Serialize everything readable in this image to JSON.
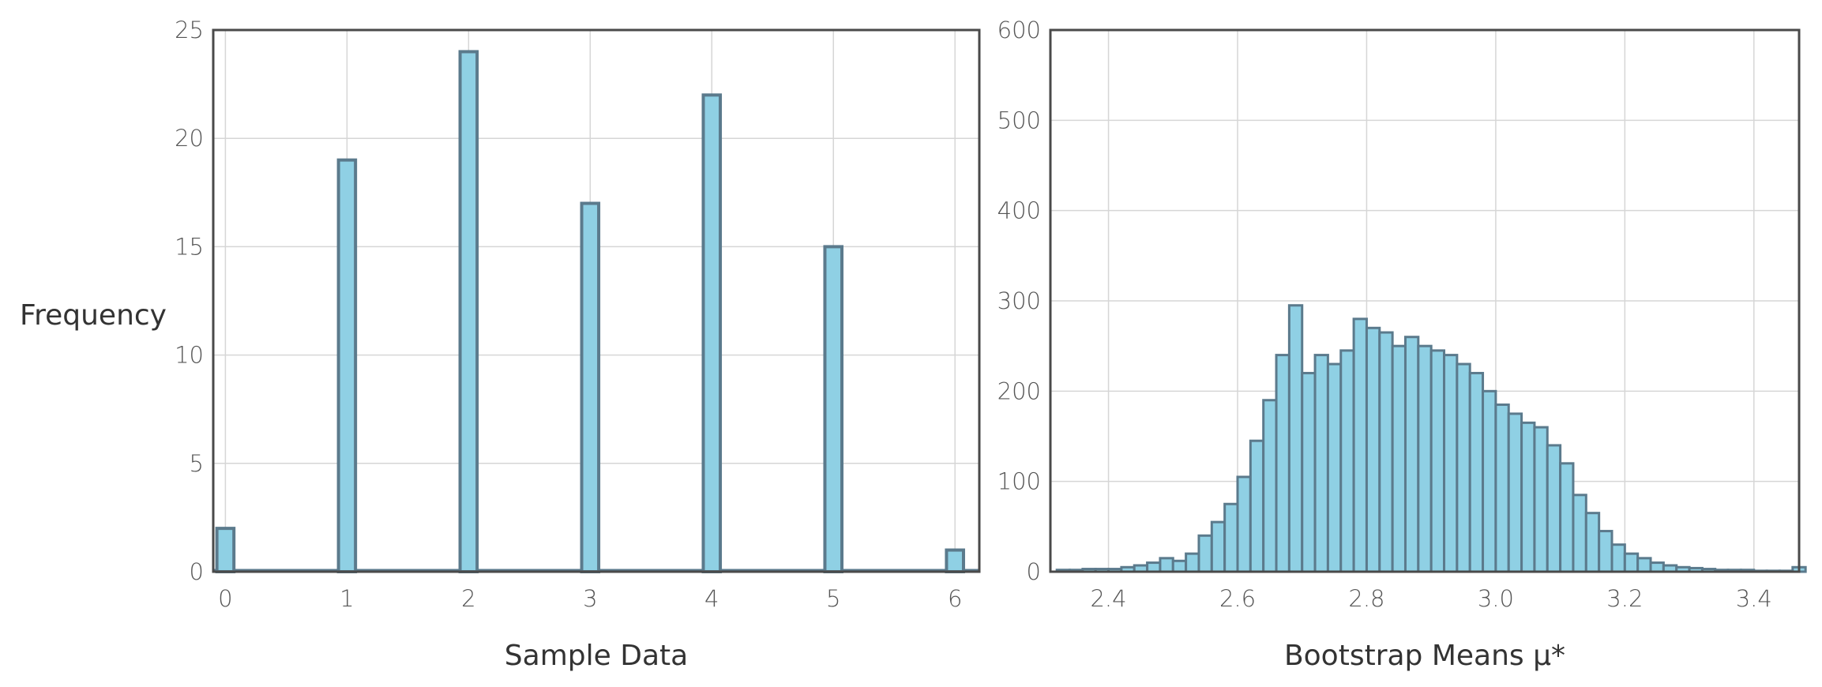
{
  "chart_data": [
    {
      "type": "bar",
      "title": "",
      "xlabel": "Sample Data",
      "ylabel": "Frequency",
      "categories": [
        0,
        1,
        2,
        3,
        4,
        5,
        6
      ],
      "values": [
        2,
        19,
        24,
        17,
        22,
        15,
        1
      ],
      "xlim": [
        -0.1,
        6.2
      ],
      "ylim": [
        0,
        25
      ],
      "xticks": [
        0,
        1,
        2,
        3,
        4,
        5,
        6
      ],
      "yticks": [
        0,
        5,
        10,
        15,
        20,
        25
      ],
      "grid": true,
      "bar_color": "#8fd0e4",
      "edge_color": "#5b7a8c"
    },
    {
      "type": "bar",
      "title": "",
      "xlabel": "Bootstrap Means μ*",
      "ylabel": "",
      "bin_width": 0.02,
      "bin_left_edges": [
        2.32,
        2.34,
        2.36,
        2.38,
        2.4,
        2.42,
        2.44,
        2.46,
        2.48,
        2.5,
        2.52,
        2.54,
        2.56,
        2.58,
        2.6,
        2.62,
        2.64,
        2.66,
        2.68,
        2.7,
        2.72,
        2.74,
        2.76,
        2.78,
        2.8,
        2.82,
        2.84,
        2.86,
        2.88,
        2.9,
        2.92,
        2.94,
        2.96,
        2.98,
        3.0,
        3.02,
        3.04,
        3.06,
        3.08,
        3.1,
        3.12,
        3.14,
        3.16,
        3.18,
        3.2,
        3.22,
        3.24,
        3.26,
        3.28,
        3.3,
        3.32,
        3.34,
        3.36,
        3.38,
        3.4,
        3.42,
        3.44,
        3.46
      ],
      "values": [
        2,
        2,
        3,
        3,
        3,
        5,
        7,
        10,
        15,
        12,
        20,
        40,
        55,
        75,
        105,
        145,
        190,
        240,
        295,
        220,
        240,
        230,
        245,
        280,
        270,
        265,
        250,
        260,
        250,
        245,
        240,
        230,
        220,
        200,
        185,
        175,
        165,
        160,
        140,
        120,
        85,
        65,
        45,
        30,
        20,
        15,
        10,
        7,
        5,
        4,
        3,
        2,
        2,
        2,
        1,
        1,
        1,
        5
      ],
      "xlim": [
        2.31,
        3.47
      ],
      "ylim": [
        0,
        600
      ],
      "xticks": [
        2.4,
        2.6,
        2.8,
        3.0,
        3.2,
        3.4
      ],
      "xtick_labels": [
        "2.4",
        "2.6",
        "2.8",
        "3.0",
        "3.2",
        "3.4"
      ],
      "yticks": [
        0,
        100,
        200,
        300,
        400,
        500,
        600
      ],
      "grid": true,
      "bar_color": "#8fd0e4",
      "edge_color": "#5b7a8c"
    }
  ]
}
